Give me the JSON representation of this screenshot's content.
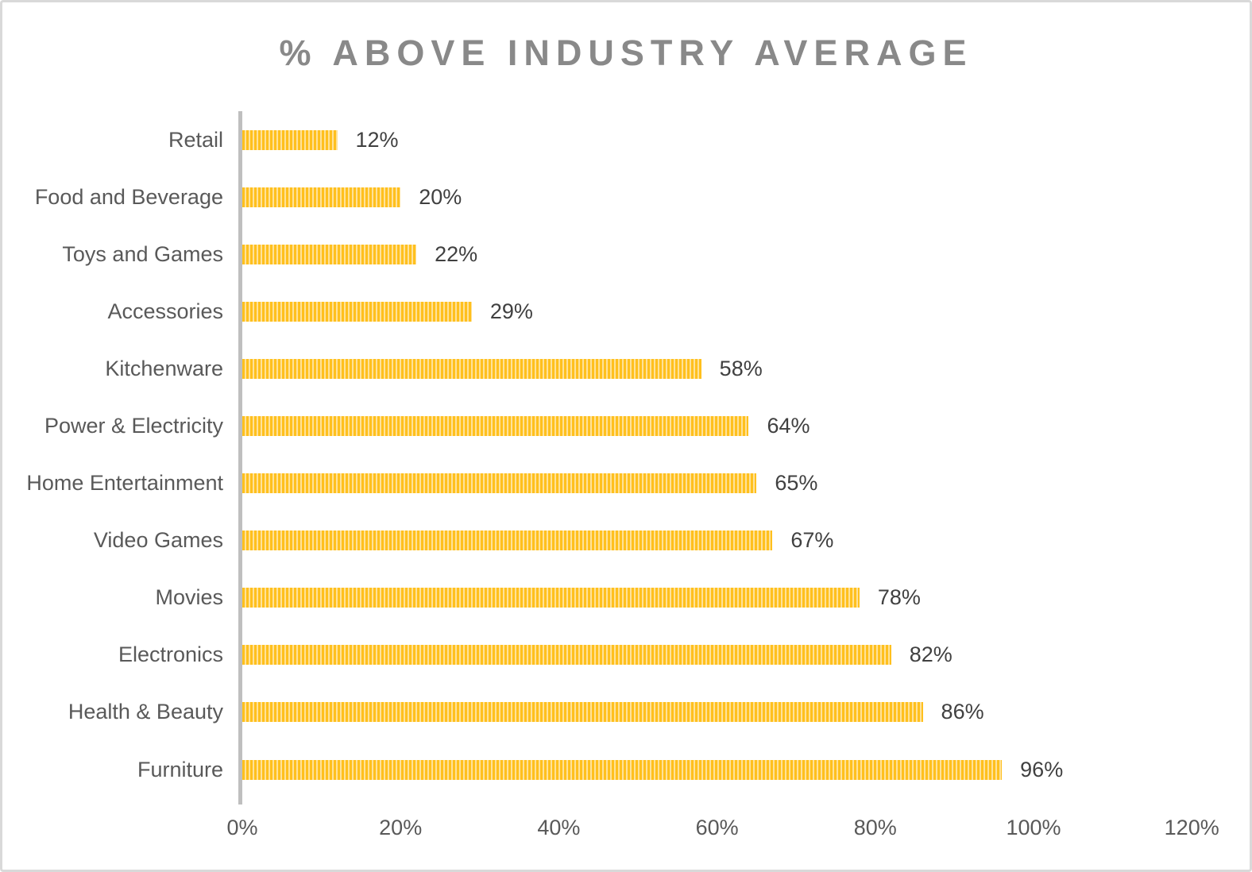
{
  "title": "% ABOVE INDUSTRY AVERAGE",
  "colors": {
    "title": "#898989",
    "category_label": "#595959",
    "data_label": "#404040",
    "tick_label": "#595959",
    "axis_line": "#bfbfbf",
    "frame_border": "#d9d9d9",
    "bar_stripe_gold": "#ffc01e",
    "bar_stripe_light": "#ffe299",
    "background": "#ffffff"
  },
  "chart_data": {
    "type": "bar",
    "orientation": "horizontal",
    "title": "% ABOVE INDUSTRY AVERAGE",
    "categories": [
      "Retail",
      "Food and Beverage",
      "Toys and Games",
      "Accessories",
      "Kitchenware",
      "Power & Electricity",
      "Home Entertainment",
      "Video Games",
      "Movies",
      "Electronics",
      "Health & Beauty",
      "Furniture"
    ],
    "values": [
      12,
      20,
      22,
      29,
      58,
      64,
      65,
      67,
      78,
      82,
      86,
      96
    ],
    "data_labels": [
      "12%",
      "20%",
      "22%",
      "29%",
      "58%",
      "64%",
      "65%",
      "67%",
      "78%",
      "82%",
      "86%",
      "96%"
    ],
    "xlabel": "",
    "ylabel": "",
    "xlim": [
      0,
      120
    ],
    "x_tick_values": [
      0,
      20,
      40,
      60,
      80,
      100,
      120
    ],
    "x_tick_labels": [
      "0%",
      "20%",
      "40%",
      "60%",
      "80%",
      "100%",
      "120%"
    ],
    "grid": false,
    "legend": false,
    "data_labels_position": "outside-end",
    "bar_fill_pattern": "vertical-stripes"
  }
}
